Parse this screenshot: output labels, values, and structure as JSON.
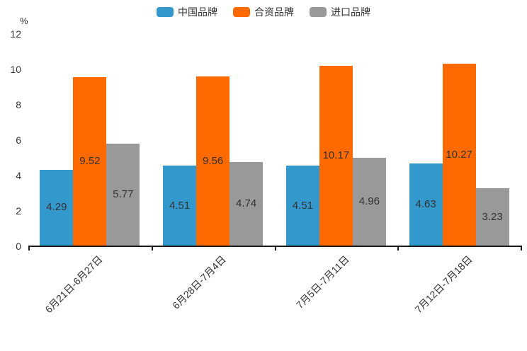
{
  "colors": {
    "axis": "#1a1a1a",
    "text": "#333333",
    "background": "#ffffff"
  },
  "chart_data": {
    "type": "bar",
    "title": "",
    "unit_label": "%",
    "xlabel": "",
    "ylabel": "%",
    "categories": [
      "6月21日-6月27日",
      "6月28日-7月4日",
      "7月5日-7月11日",
      "7月12日-7月18日"
    ],
    "series": [
      {
        "name": "中国品牌",
        "color": "#3398CC",
        "values": [
          4.29,
          4.51,
          4.51,
          4.63
        ]
      },
      {
        "name": "合资品牌",
        "color": "#FF6A00",
        "values": [
          9.52,
          9.56,
          10.17,
          10.27
        ]
      },
      {
        "name": "进口品牌",
        "color": "#999999",
        "values": [
          5.77,
          4.74,
          4.96,
          3.23
        ]
      }
    ],
    "y_ticks": [
      0,
      2,
      4,
      6,
      8,
      10,
      12
    ],
    "ylim": [
      0,
      12
    ],
    "grid": false,
    "legend_position": "top",
    "value_labels": "inside-center",
    "x_label_rotation_deg": 45
  }
}
